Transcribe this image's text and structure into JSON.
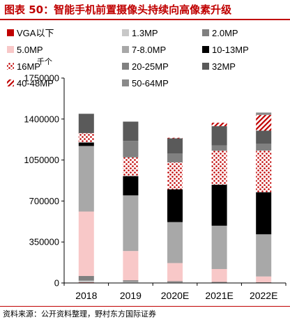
{
  "title": "图表 50：智能手机前置摄像头持续向高像素升级",
  "source": "资料来源：公开资料整理，野村东方国际证券",
  "chart_data": {
    "type": "bar",
    "stacked": true,
    "unit_label": "千个",
    "categories": [
      "2018",
      "2019",
      "2020E",
      "2021E",
      "2022E"
    ],
    "ylim": [
      0,
      1750000
    ],
    "yticks": [
      "0",
      "350000",
      "700000",
      "1050000",
      "1400000",
      "1750000"
    ],
    "legend_position": "top",
    "grid": false,
    "series": [
      {
        "name": "VGA以下",
        "color": "#c00000",
        "pattern": "solid",
        "values": [
          5000,
          3000,
          2000,
          1000,
          500
        ]
      },
      {
        "name": "1.3MP",
        "color": "#c8c8c8",
        "pattern": "solid",
        "values": [
          15000,
          8000,
          5000,
          3000,
          2000
        ]
      },
      {
        "name": "2.0MP",
        "color": "#808080",
        "pattern": "solid",
        "values": [
          40000,
          12000,
          8000,
          5000,
          3000
        ]
      },
      {
        "name": "5.0MP",
        "color": "#f8c8c8",
        "pattern": "solid",
        "values": [
          550000,
          250000,
          155000,
          110000,
          50000
        ]
      },
      {
        "name": "7-8.0MP",
        "color": "#a8a8a8",
        "pattern": "solid",
        "values": [
          560000,
          475000,
          350000,
          370000,
          360000
        ]
      },
      {
        "name": "10-13MP",
        "color": "#000000",
        "pattern": "solid",
        "values": [
          30000,
          165000,
          280000,
          350000,
          360000
        ]
      },
      {
        "name": "16MP",
        "color": "#c00000",
        "pattern": "dots",
        "values": [
          80000,
          160000,
          230000,
          290000,
          355000
        ]
      },
      {
        "name": "20-25MP",
        "color": "#808080",
        "pattern": "solid",
        "values": [
          0,
          140000,
          75000,
          45000,
          60000
        ]
      },
      {
        "name": "32MP",
        "color": "#5a5a5a",
        "pattern": "solid",
        "values": [
          165000,
          165000,
          130000,
          165000,
          110000
        ]
      },
      {
        "name": "40-48MP",
        "color": "#c00000",
        "pattern": "stripes",
        "values": [
          0,
          0,
          5000,
          30000,
          135000
        ]
      },
      {
        "name": "50-64MP",
        "color": "#8a8a8a",
        "pattern": "solid",
        "values": [
          0,
          0,
          0,
          0,
          20000
        ]
      }
    ]
  }
}
